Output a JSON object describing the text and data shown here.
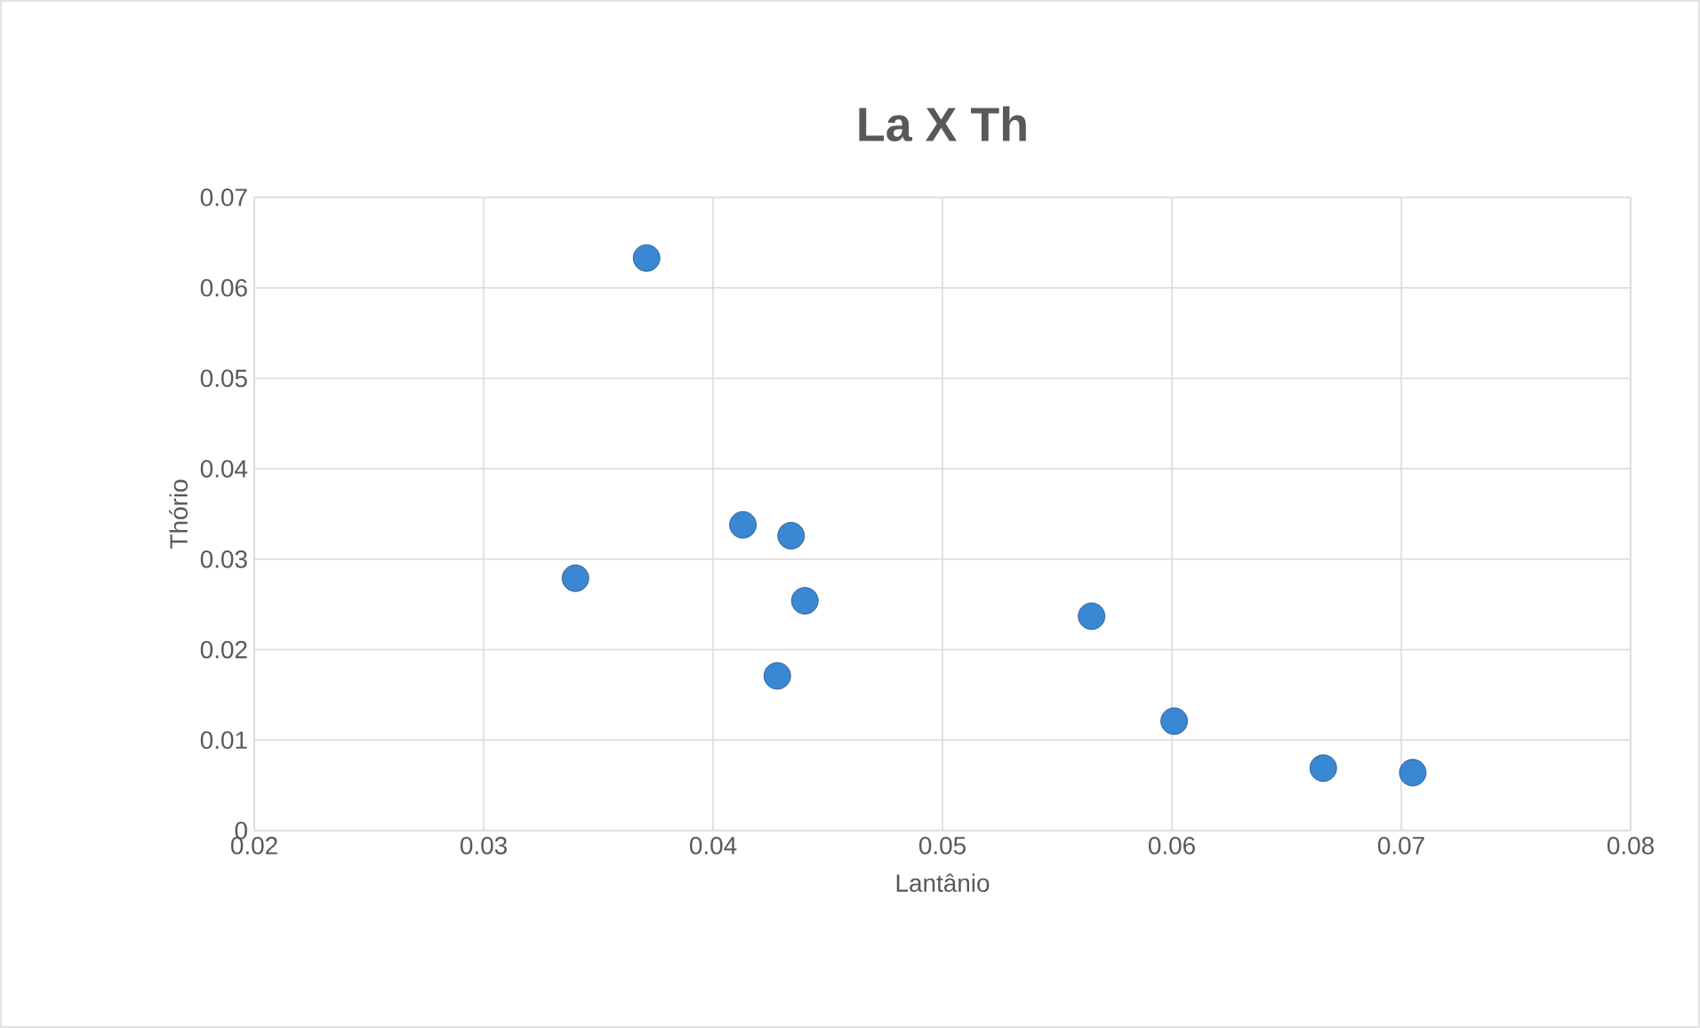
{
  "chart_data": {
    "type": "scatter",
    "title": "La X Th",
    "xlabel": "Lantânio",
    "ylabel": "Thório",
    "x": [
      0.0371,
      0.034,
      0.0413,
      0.0434,
      0.044,
      0.0428,
      0.0565,
      0.0601,
      0.0666,
      0.0705
    ],
    "series": [
      {
        "color": "#3a87d3",
        "values": [
          0.0633,
          0.0279,
          0.0338,
          0.0326,
          0.0254,
          0.0171,
          0.0237,
          0.0121,
          0.0069,
          0.0064
        ]
      }
    ],
    "xlim": [
      0.02,
      0.08
    ],
    "xticks": [
      0.02,
      0.03,
      0.04,
      0.05,
      0.06,
      0.07,
      0.08
    ],
    "ylim": [
      0,
      0.07
    ],
    "yticks": [
      0,
      0.01,
      0.02,
      0.03,
      0.04,
      0.05,
      0.06,
      0.07
    ],
    "grid": true,
    "marker": "circle"
  }
}
